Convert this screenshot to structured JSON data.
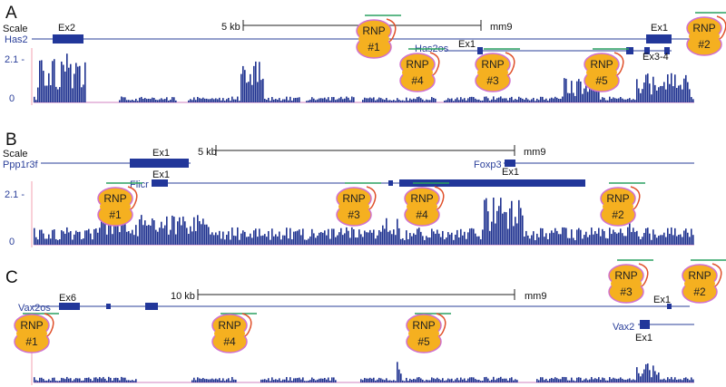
{
  "panels": [
    {
      "letter": "A",
      "scale_label": "Scale",
      "scale_text": "5 kb",
      "assembly": "mm9",
      "genes": [
        "Has2",
        "Has2os"
      ],
      "exons": [
        "Ex2",
        "Ex1",
        "Ex1",
        "Ex3-4"
      ],
      "axis": [
        "2.1 -",
        "0"
      ],
      "rnps": [
        {
          "name": "RNP",
          "number": "#1"
        },
        {
          "name": "RNP",
          "number": "#2"
        },
        {
          "name": "RNP",
          "number": "#4"
        },
        {
          "name": "RNP",
          "number": "#3"
        },
        {
          "name": "RNP",
          "number": "#5"
        }
      ]
    },
    {
      "letter": "B",
      "scale_label": "Scale",
      "scale_text": "5 kb",
      "assembly": "mm9",
      "genes": [
        "Ppp1r3f",
        "Foxp3",
        "Flicr"
      ],
      "exons": [
        "Ex1",
        "Ex1",
        "Ex1"
      ],
      "axis": [
        "2.1 -",
        "0"
      ],
      "rnps": [
        {
          "name": "RNP",
          "number": "#1"
        },
        {
          "name": "RNP",
          "number": "#3"
        },
        {
          "name": "RNP",
          "number": "#4"
        },
        {
          "name": "RNP",
          "number": "#2"
        }
      ]
    },
    {
      "letter": "C",
      "scale_text": "10 kb",
      "assembly": "mm9",
      "genes": [
        "Vax2os",
        "Vax2"
      ],
      "exons": [
        "Ex6",
        "Ex1",
        "Ex1"
      ],
      "rnps": [
        {
          "name": "RNP",
          "number": "#1"
        },
        {
          "name": "RNP",
          "number": "#4"
        },
        {
          "name": "RNP",
          "number": "#5"
        },
        {
          "name": "RNP",
          "number": "#3"
        },
        {
          "name": "RNP",
          "number": "#2"
        }
      ]
    }
  ]
}
